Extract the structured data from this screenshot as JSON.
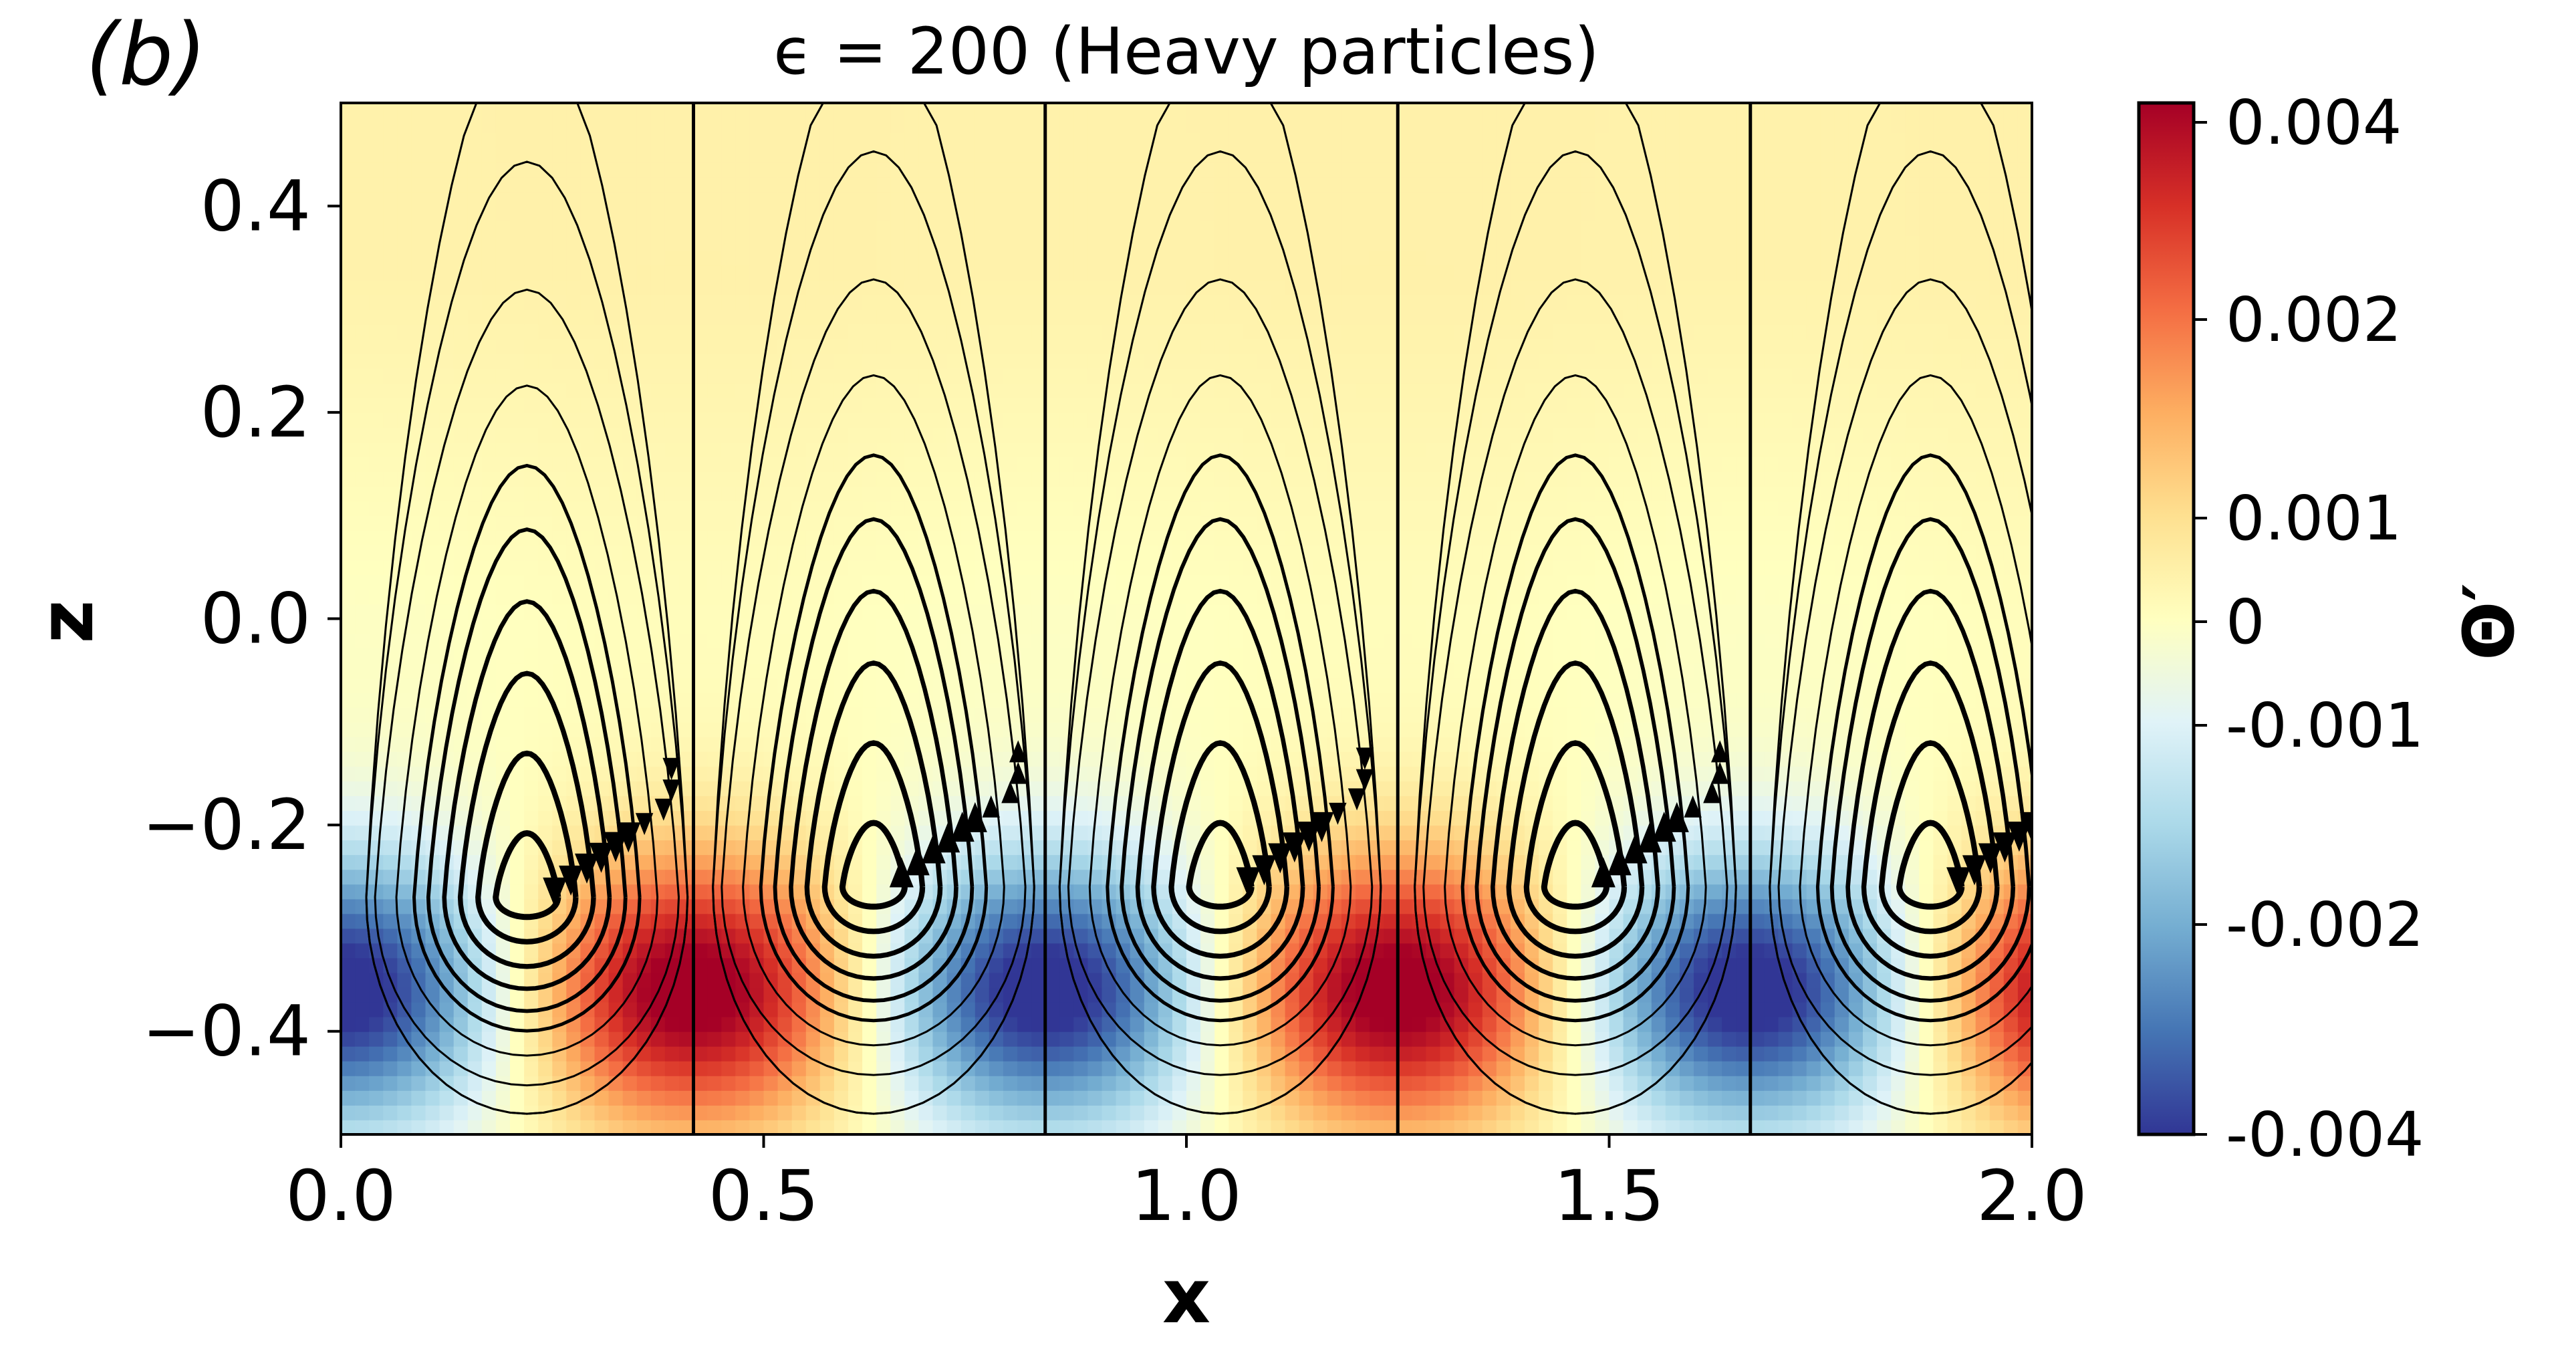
{
  "chart_data": {
    "type": "heatmap",
    "panel_label": "(b)",
    "title": "ϵ = 200 (Heavy particles)",
    "xlabel": "x",
    "ylabel": "z",
    "xlim": [
      0.0,
      2.0
    ],
    "ylim": [
      -0.5,
      0.5
    ],
    "x_ticks": [
      0.0,
      0.5,
      1.0,
      1.5,
      2.0
    ],
    "x_tick_labels": [
      "0.0",
      "0.5",
      "1.0",
      "1.5",
      "2.0"
    ],
    "y_ticks": [
      0.4,
      0.2,
      0.0,
      -0.2,
      -0.4
    ],
    "y_tick_labels": [
      "0.4",
      "0.2",
      "0.0",
      "−0.2",
      "−0.4"
    ],
    "colorbar": {
      "label": "Θ′",
      "colormap": "RdYlBu_r",
      "range": [
        -0.004,
        0.004
      ],
      "ticks": [
        0.004,
        0.002,
        0.001,
        0,
        -0.001,
        -0.002,
        -0.004
      ],
      "tick_labels": [
        "0.004",
        "0.002",
        "0.001",
        "0",
        "-0.001",
        "-0.002",
        "-0.004"
      ],
      "colors": [
        "#313695",
        "#4575b4",
        "#74add1",
        "#abd9e9",
        "#e0f3f8",
        "#ffffbf",
        "#fee090",
        "#fdae61",
        "#f46d43",
        "#d73027",
        "#a50026"
      ]
    },
    "field": {
      "description_of_structure": "periodic convection cells",
      "cell_period": 0.833,
      "cell_boundaries_x": [
        0.0,
        0.417,
        0.833,
        1.25,
        1.667,
        2.0
      ],
      "amplitude_peak": 0.0043,
      "peak_z": -0.36
    },
    "streamlines": {
      "cell_centers": [
        {
          "x": 0.22,
          "z": -0.27,
          "rotation": "counterclockwise"
        },
        {
          "x": 0.63,
          "z": -0.26,
          "rotation": "clockwise"
        },
        {
          "x": 1.04,
          "z": -0.26,
          "rotation": "counterclockwise"
        },
        {
          "x": 1.46,
          "z": -0.26,
          "rotation": "clockwise"
        },
        {
          "x": 1.88,
          "z": -0.26,
          "rotation": "counterclockwise"
        }
      ]
    }
  }
}
